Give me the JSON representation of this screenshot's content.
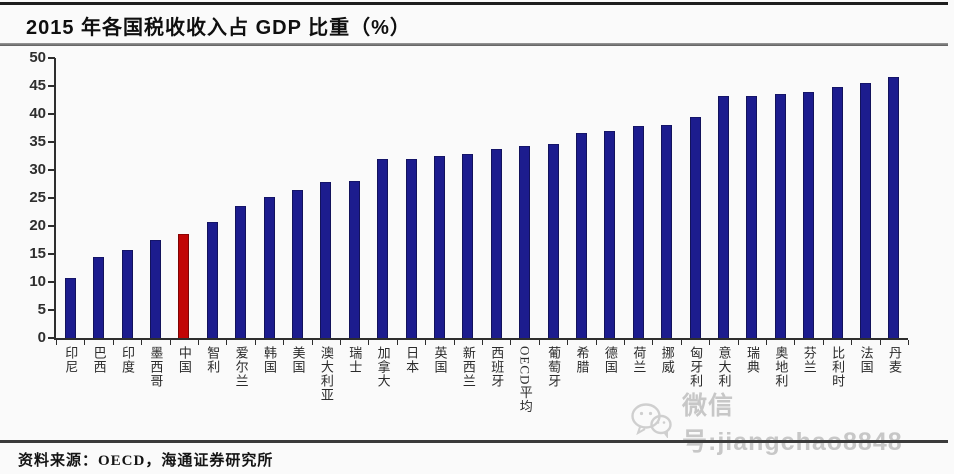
{
  "header": {
    "title": "2015 年各国税收收入占 GDP 比重（%）"
  },
  "chart_data": {
    "type": "bar",
    "title": "2015 年各国税收收入占 GDP 比重（%）",
    "xlabel": "",
    "ylabel": "",
    "ylim": [
      0,
      50
    ],
    "y_ticks": [
      0,
      5,
      10,
      15,
      20,
      25,
      30,
      35,
      40,
      45,
      50
    ],
    "grid": false,
    "legend": "none",
    "categories": [
      "印尼",
      "巴西",
      "印度",
      "墨西哥",
      "中国",
      "智利",
      "爱尔兰",
      "韩国",
      "美国",
      "澳大利亚",
      "瑞士",
      "加拿大",
      "日本",
      "英国",
      "新西兰",
      "西班牙",
      "OECD平均",
      "葡萄牙",
      "希腊",
      "德国",
      "荷兰",
      "挪威",
      "匈牙利",
      "意大利",
      "瑞典",
      "奥地利",
      "芬兰",
      "比利时",
      "法国",
      "丹麦"
    ],
    "values": [
      10.8,
      14.4,
      15.7,
      17.5,
      18.5,
      20.7,
      23.6,
      25.2,
      26.4,
      27.9,
      28.0,
      31.9,
      32.0,
      32.5,
      32.8,
      33.8,
      34.3,
      34.6,
      36.7,
      36.9,
      37.8,
      38.1,
      39.4,
      43.3,
      43.3,
      43.5,
      44.0,
      44.8,
      45.5,
      46.6
    ],
    "bar_color": "#1c1c8e",
    "highlight_index": 4,
    "highlight_category": "中国",
    "highlight_color": "#c10505",
    "axis_color": "#2e2e2e"
  },
  "watermark": {
    "icon": "wechat-icon",
    "text": "微信号:jiangchao8848",
    "color": "#c7c7c7"
  },
  "footer": {
    "source_note": "资料来源：OECD，海通证券研究所"
  }
}
